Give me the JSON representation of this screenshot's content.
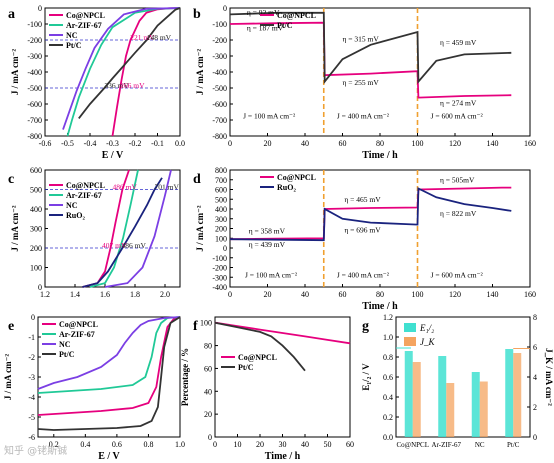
{
  "watermark": "知乎 @铑斯铖",
  "chart_data": [
    {
      "panel": "a",
      "type": "line",
      "xlabel": "E / V",
      "ylabel": "J / mA cm⁻²",
      "xlim": [
        -0.6,
        0.0
      ],
      "ylim": [
        -800,
        0
      ],
      "xticks": [
        "-0.6",
        "-0.5",
        "-0.4",
        "-0.3",
        "-0.2",
        "-0.1",
        "0.0"
      ],
      "yticks": [
        "0",
        "-100",
        "-200",
        "-300",
        "-400",
        "-500",
        "-600",
        "-700",
        "-800"
      ],
      "legend": [
        "Co@NPCL",
        "Ar-ZIF-67",
        "NC",
        "Pt/C"
      ],
      "reference_lines": [
        -200,
        -500
      ],
      "annotations": [
        {
          "text": "221 mV",
          "color": "#e6007e",
          "x": -0.221,
          "y": -200
        },
        {
          "text": "148 mV",
          "color": "#222222",
          "x": -0.148,
          "y": -200
        },
        {
          "text": "336 mV",
          "color": "#222222",
          "x": -0.336,
          "y": -500
        },
        {
          "text": "266 mV",
          "color": "#e6007e",
          "x": -0.266,
          "y": -500
        }
      ],
      "series": [
        {
          "name": "Co@NPCL",
          "color": "#e6007e",
          "x": [
            0,
            -0.05,
            -0.1,
            -0.15,
            -0.18,
            -0.2,
            -0.22,
            -0.24,
            -0.26,
            -0.28,
            -0.3
          ],
          "y": [
            0,
            -2,
            -8,
            -30,
            -80,
            -140,
            -200,
            -300,
            -450,
            -620,
            -800
          ]
        },
        {
          "name": "Ar-ZIF-67",
          "color": "#20c997",
          "x": [
            0,
            -0.1,
            -0.2,
            -0.3,
            -0.35,
            -0.4,
            -0.45,
            -0.48,
            -0.5
          ],
          "y": [
            0,
            -5,
            -30,
            -120,
            -230,
            -380,
            -560,
            -700,
            -800
          ]
        },
        {
          "name": "NC",
          "color": "#7b3fe4",
          "x": [
            0,
            -0.15,
            -0.25,
            -0.32,
            -0.38,
            -0.42,
            -0.46,
            -0.5,
            -0.52
          ],
          "y": [
            0,
            -5,
            -40,
            -130,
            -250,
            -380,
            -520,
            -680,
            -760
          ]
        },
        {
          "name": "Pt/C",
          "color": "#333333",
          "x": [
            0,
            -0.02,
            -0.06,
            -0.1,
            -0.148,
            -0.2,
            -0.25,
            -0.3,
            -0.336,
            -0.4,
            -0.45
          ],
          "y": [
            0,
            -10,
            -60,
            -110,
            -200,
            -280,
            -360,
            -440,
            -500,
            -600,
            -690
          ]
        }
      ]
    },
    {
      "panel": "b",
      "type": "line",
      "xlabel": "Time / h",
      "ylabel": "J / mA cm⁻²",
      "xlim": [
        0,
        160
      ],
      "ylim": [
        -800,
        0
      ],
      "xticks": [
        "0",
        "20",
        "40",
        "60",
        "80",
        "100",
        "120",
        "140",
        "160"
      ],
      "yticks": [
        "0",
        "-100",
        "-200",
        "-300",
        "-400",
        "-500",
        "-600",
        "-700",
        "-800"
      ],
      "legend": [
        "Co@NPCL",
        "Pt/C"
      ],
      "dividers": [
        50,
        100
      ],
      "annotations": [
        {
          "text": "η = 92 mV",
          "x": 9,
          "y": -45
        },
        {
          "text": "η = 187 mV",
          "x": 9,
          "y": -140
        },
        {
          "text": "η = 315 mV",
          "x": 60,
          "y": -210
        },
        {
          "text": "η = 255 mV",
          "x": 60,
          "y": -480
        },
        {
          "text": "η = 459 mV",
          "x": 112,
          "y": -230
        },
        {
          "text": "η = 274 mV",
          "x": 112,
          "y": -610
        },
        {
          "text": "J = 100 mA cm⁻²",
          "x": 7,
          "y": -690
        },
        {
          "text": "J = 400 mA cm⁻²",
          "x": 57,
          "y": -690
        },
        {
          "text": "J = 600 mA cm⁻²",
          "x": 107,
          "y": -690
        }
      ],
      "series": [
        {
          "name": "Co@NPCL",
          "color": "#e6007e",
          "x": [
            0,
            25,
            50,
            50.5,
            75,
            100,
            100.5,
            125,
            150
          ],
          "y": [
            -100,
            -95,
            -92,
            -420,
            -410,
            -395,
            -560,
            -550,
            -545
          ]
        },
        {
          "name": "Pt/C",
          "color": "#333333",
          "x": [
            0,
            25,
            50,
            50.5,
            60,
            75,
            100,
            100.5,
            110,
            125,
            150
          ],
          "y": [
            -40,
            -30,
            -30,
            -460,
            -320,
            -230,
            -150,
            -460,
            -330,
            -290,
            -280
          ]
        }
      ]
    },
    {
      "panel": "c",
      "type": "line",
      "xlabel": "",
      "ylabel": "J / mA cm⁻²",
      "xlim": [
        1.2,
        2.1
      ],
      "ylim": [
        0,
        600
      ],
      "xticks": [
        "1.2",
        "1.4",
        "1.6",
        "1.8",
        "2.0"
      ],
      "yticks": [
        "0",
        "100",
        "200",
        "300",
        "400",
        "500",
        "600"
      ],
      "legend": [
        "Co@NPCL",
        "Ar-ZIF-67",
        "NC",
        "RuO₂"
      ],
      "reference_lines": [
        200,
        500
      ],
      "annotations": [
        {
          "text": "486 mV",
          "color": "#e6007e",
          "x": 1.65,
          "y": 500
        },
        {
          "text": "701 mV",
          "color": "#222222",
          "x": 1.93,
          "y": 500
        },
        {
          "text": "407 mV",
          "color": "#e6007e",
          "x": 1.58,
          "y": 200
        },
        {
          "text": "486 mV",
          "color": "#222222",
          "x": 1.71,
          "y": 200
        }
      ],
      "series": [
        {
          "name": "Co@NPCL",
          "color": "#e6007e",
          "x": [
            1.45,
            1.55,
            1.6,
            1.637,
            1.67,
            1.716,
            1.76
          ],
          "y": [
            0,
            20,
            80,
            200,
            330,
            500,
            600
          ]
        },
        {
          "name": "Ar-ZIF-67",
          "color": "#20c997",
          "x": [
            1.5,
            1.6,
            1.66,
            1.72,
            1.77,
            1.82
          ],
          "y": [
            0,
            20,
            100,
            250,
            420,
            600
          ]
        },
        {
          "name": "NC",
          "color": "#7b3fe4",
          "x": [
            1.6,
            1.75,
            1.85,
            1.93,
            2.0,
            2.04
          ],
          "y": [
            0,
            20,
            100,
            260,
            470,
            600
          ]
        },
        {
          "name": "RuO₂",
          "color": "#1a237e",
          "x": [
            1.45,
            1.55,
            1.62,
            1.716,
            1.8,
            1.88,
            1.931,
            1.98
          ],
          "y": [
            0,
            20,
            80,
            200,
            310,
            420,
            500,
            560
          ]
        }
      ]
    },
    {
      "panel": "d",
      "type": "line",
      "xlabel": "Time / h",
      "ylabel": "J / mA cm⁻²",
      "xlim": [
        0,
        160
      ],
      "ylim": [
        -400,
        800
      ],
      "xticks": [
        "0",
        "20",
        "40",
        "60",
        "80",
        "100",
        "120",
        "140",
        "160"
      ],
      "yticks": [
        "-400",
        "-300",
        "-200",
        "-100",
        "0",
        "100",
        "200",
        "300",
        "400",
        "500",
        "600",
        "700",
        "800"
      ],
      "legend": [
        "Co@NPCL",
        "RuO₂"
      ],
      "dividers": [
        50,
        100
      ],
      "annotations": [
        {
          "text": "η = 358 mV",
          "x": 10,
          "y": 150
        },
        {
          "text": "η = 439 mV",
          "x": 10,
          "y": 10
        },
        {
          "text": "η = 465 mV",
          "x": 61,
          "y": 470
        },
        {
          "text": "η = 696 mV",
          "x": 61,
          "y": 160
        },
        {
          "text": "η = 505mV",
          "x": 112,
          "y": 670
        },
        {
          "text": "η = 822 mV",
          "x": 112,
          "y": 330
        },
        {
          "text": "J = 100 mA cm⁻²",
          "x": 8,
          "y": -300
        },
        {
          "text": "J = 400 mA cm⁻²",
          "x": 57,
          "y": -300
        },
        {
          "text": "J = 600 mA cm⁻²",
          "x": 107,
          "y": -300
        }
      ],
      "series": [
        {
          "name": "Co@NPCL",
          "color": "#e6007e",
          "x": [
            0,
            25,
            50,
            50.5,
            75,
            100,
            100.5,
            125,
            145,
            150
          ],
          "y": [
            90,
            95,
            100,
            400,
            410,
            415,
            600,
            610,
            620,
            620
          ]
        },
        {
          "name": "RuO₂",
          "color": "#1a237e",
          "x": [
            0,
            25,
            50,
            50.5,
            60,
            75,
            100,
            100.5,
            110,
            125,
            140,
            150
          ],
          "y": [
            90,
            85,
            80,
            400,
            300,
            260,
            240,
            610,
            520,
            450,
            410,
            380
          ]
        }
      ]
    },
    {
      "panel": "e",
      "type": "line",
      "xlabel": "E / V",
      "ylabel": "J / mA cm⁻²",
      "xlim": [
        0.1,
        1.0
      ],
      "ylim": [
        -6,
        0
      ],
      "xticks": [
        "0.2",
        "0.4",
        "0.6",
        "0.8",
        "1.0"
      ],
      "yticks": [
        "0",
        "-1",
        "-2",
        "-3",
        "-4",
        "-5",
        "-6"
      ],
      "legend": [
        "Co@NPCL",
        "Ar-ZIF-67",
        "NC",
        "Pt/C"
      ],
      "series": [
        {
          "name": "Co@NPCL",
          "color": "#e6007e",
          "x": [
            0.1,
            0.3,
            0.5,
            0.7,
            0.8,
            0.85,
            0.88,
            0.92,
            0.96,
            1.0
          ],
          "y": [
            -4.9,
            -4.8,
            -4.7,
            -4.55,
            -4.3,
            -3.5,
            -2.0,
            -0.5,
            -0.1,
            0
          ]
        },
        {
          "name": "Ar-ZIF-67",
          "color": "#20c997",
          "x": [
            0.1,
            0.3,
            0.5,
            0.7,
            0.78,
            0.82,
            0.85,
            0.88,
            0.92,
            1.0
          ],
          "y": [
            -3.8,
            -3.7,
            -3.6,
            -3.4,
            -3.0,
            -2.0,
            -0.8,
            -0.3,
            -0.05,
            0
          ]
        },
        {
          "name": "NC",
          "color": "#7b3fe4",
          "x": [
            0.1,
            0.2,
            0.35,
            0.5,
            0.6,
            0.65,
            0.7,
            0.75,
            0.8,
            0.9,
            1.0
          ],
          "y": [
            -3.6,
            -3.3,
            -3.0,
            -2.5,
            -1.9,
            -1.3,
            -0.8,
            -0.4,
            -0.2,
            -0.05,
            0
          ]
        },
        {
          "name": "Pt/C",
          "color": "#333333",
          "x": [
            0.1,
            0.2,
            0.4,
            0.6,
            0.75,
            0.82,
            0.86,
            0.88,
            0.9,
            0.94,
            1.0
          ],
          "y": [
            -5.6,
            -5.65,
            -5.6,
            -5.55,
            -5.45,
            -5.2,
            -4.5,
            -3.0,
            -1.5,
            -0.3,
            0
          ]
        }
      ]
    },
    {
      "panel": "f",
      "type": "line",
      "xlabel": "Time / h",
      "ylabel": "Percentage / %",
      "xlim": [
        0,
        60
      ],
      "ylim": [
        0,
        105
      ],
      "xticks": [
        "0",
        "10",
        "20",
        "30",
        "40",
        "50",
        "60"
      ],
      "yticks": [
        "0",
        "20",
        "40",
        "60",
        "80",
        "100"
      ],
      "legend": [
        "Co@NPCL",
        "Pt/C"
      ],
      "series": [
        {
          "name": "Co@NPCL",
          "color": "#e6007e",
          "x": [
            0,
            10,
            20,
            30,
            40,
            50,
            60
          ],
          "y": [
            100,
            97,
            94,
            91,
            88,
            85,
            82
          ]
        },
        {
          "name": "Pt/C",
          "color": "#333333",
          "x": [
            0,
            10,
            20,
            25,
            30,
            35,
            40
          ],
          "y": [
            100,
            96,
            92,
            88,
            80,
            70,
            58
          ]
        }
      ]
    },
    {
      "panel": "g",
      "type": "bar",
      "ylabel": "E₁/₂ / V",
      "y2label": "J_K / mA cm⁻²",
      "categories": [
        "Co@NPCL",
        "Ar-ZIF-67",
        "NC",
        "Pt/C"
      ],
      "ylim": [
        0.0,
        1.2
      ],
      "y2lim": [
        0,
        8
      ],
      "yticks": [
        "0.0",
        "0.2",
        "0.4",
        "0.6",
        "0.8",
        "1.0",
        "1.2"
      ],
      "y2ticks": [
        "0",
        "2",
        "4",
        "6",
        "8"
      ],
      "legend": [
        "E₁/₂",
        "J_K"
      ],
      "series": [
        {
          "name": "E₁/₂",
          "color": "#40e0d0",
          "values": [
            0.86,
            0.81,
            0.65,
            0.88
          ]
        },
        {
          "name": "J_K",
          "color": "#f4a460",
          "values": [
            5.0,
            3.6,
            3.7,
            5.6
          ]
        }
      ]
    }
  ]
}
